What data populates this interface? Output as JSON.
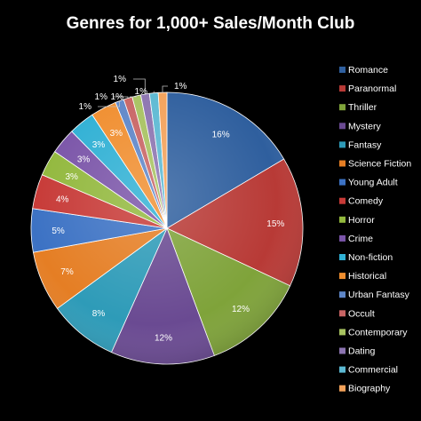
{
  "chart_data": {
    "type": "pie",
    "title": "Genres for 1,000+ Sales/Month Club",
    "legend_position": "right",
    "categories": [
      "Romance",
      "Paranormal",
      "Thriller",
      "Mystery",
      "Fantasy",
      "Science Fiction",
      "Young Adult",
      "Comedy",
      "Horror",
      "Crime",
      "Non-fiction",
      "Historical",
      "Urban Fantasy",
      "Occult",
      "Contemporary",
      "Dating",
      "Commercial",
      "Biography"
    ],
    "values": [
      16,
      15,
      12,
      12,
      8,
      7,
      5,
      4,
      3,
      3,
      3,
      3,
      1,
      1,
      1,
      1,
      1,
      1
    ],
    "labels": [
      "16%",
      "15%",
      "12%",
      "12%",
      "8%",
      "7%",
      "5%",
      "4%",
      "3%",
      "3%",
      "3%",
      "3%",
      "1%",
      "1%",
      "1%",
      "1%",
      "1%",
      "1%"
    ],
    "colors": [
      "#2f5f9e",
      "#b83a36",
      "#7fa33a",
      "#6a4a92",
      "#2e9bb8",
      "#e57e24",
      "#3c72c4",
      "#c73a37",
      "#92b83d",
      "#7a54a8",
      "#2fb0d4",
      "#f08e2f",
      "#5e86c8",
      "#c86464",
      "#a7c260",
      "#8c74b0",
      "#5cb9d3",
      "#f4a25a"
    ]
  }
}
